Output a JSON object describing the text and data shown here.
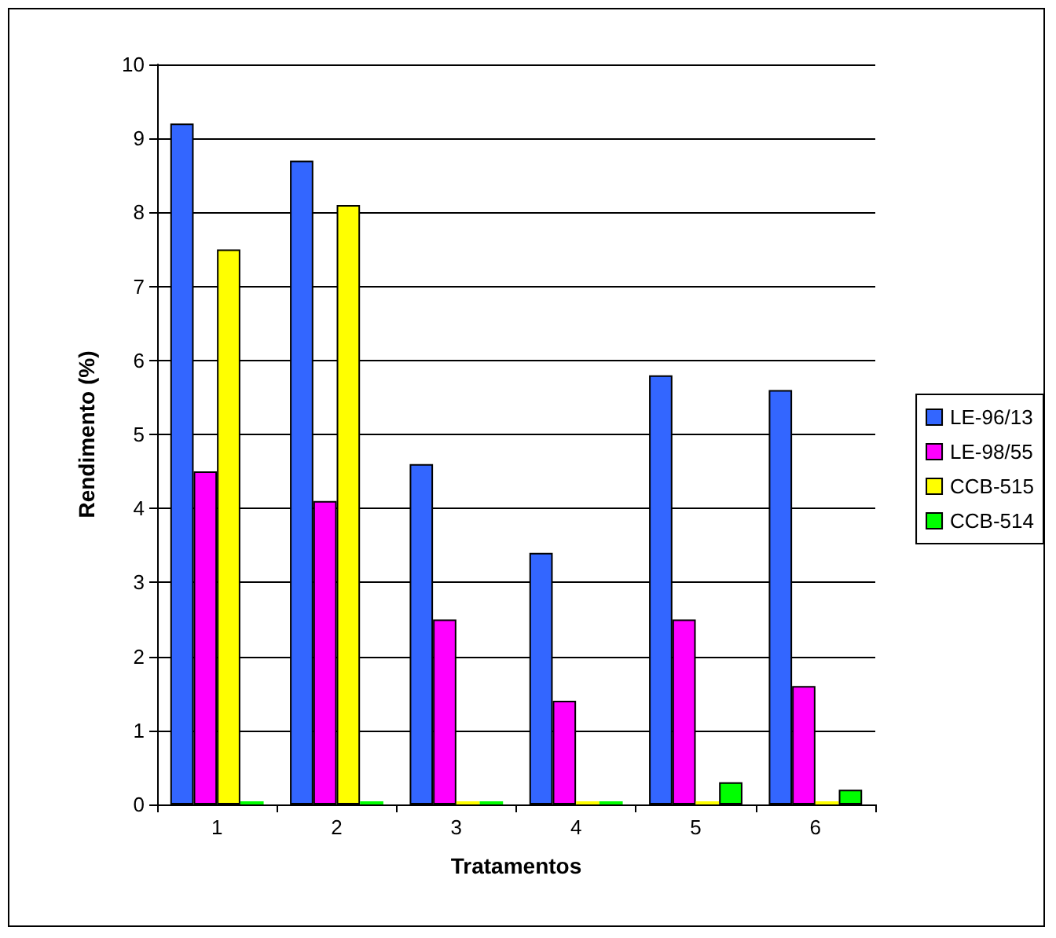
{
  "chart_data": {
    "type": "bar",
    "xlabel": "Tratamentos",
    "ylabel": "Rendimento (%)",
    "categories": [
      "1",
      "2",
      "3",
      "4",
      "5",
      "6"
    ],
    "series": [
      {
        "name": "LE-96/13",
        "color": "#3366ff",
        "values": [
          9.2,
          8.7,
          4.6,
          3.4,
          5.8,
          5.6
        ]
      },
      {
        "name": "LE-98/55",
        "color": "#ff00ff",
        "values": [
          4.5,
          4.1,
          2.5,
          1.4,
          2.5,
          1.6
        ]
      },
      {
        "name": "CCB-515",
        "color": "#ffff00",
        "values": [
          7.5,
          8.1,
          0,
          0,
          0,
          0
        ]
      },
      {
        "name": "CCB-514",
        "color": "#00ff00",
        "values": [
          0,
          0,
          0,
          0,
          0.3,
          0.2
        ]
      }
    ],
    "ylim": [
      0,
      10
    ],
    "yticks": [
      0,
      1,
      2,
      3,
      4,
      5,
      6,
      7,
      8,
      9,
      10
    ],
    "grid": "y",
    "legend": "right"
  }
}
